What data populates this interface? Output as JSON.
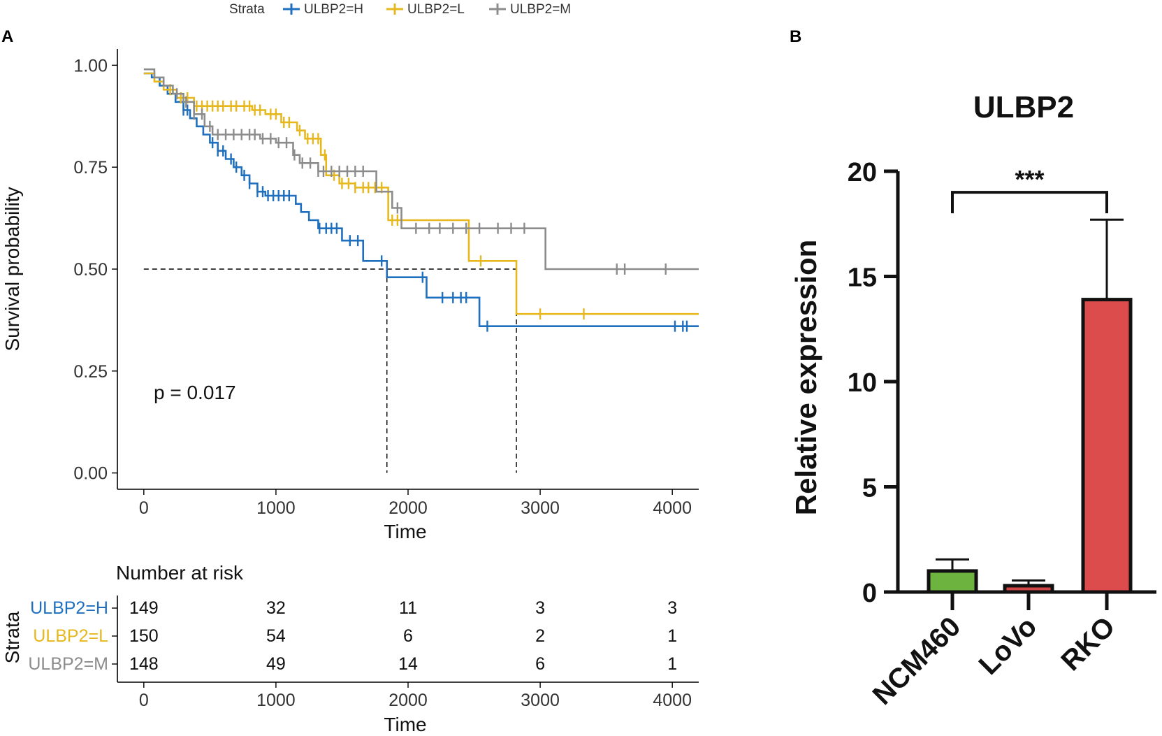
{
  "chart_data": [
    {
      "panel_label": "A",
      "type": "line",
      "subtype": "kaplan-meier",
      "title": "",
      "xlabel": "Time",
      "ylabel": "Survival probability",
      "xlim": [
        -200,
        4200
      ],
      "ylim": [
        -0.04,
        1.04
      ],
      "x_ticks": [
        0,
        1000,
        2000,
        3000,
        4000
      ],
      "x_tick_labels": [
        "0",
        "1000",
        "2000",
        "3000",
        "4000"
      ],
      "y_ticks": [
        0,
        0.25,
        0.5,
        0.75,
        1.0
      ],
      "y_tick_labels": [
        "0.00",
        "0.25",
        "0.50",
        "0.75",
        "1.00"
      ],
      "pvalue_text": "p = 0.017",
      "median_reference_line": {
        "y": 0.5,
        "x_medians": [
          1840,
          2820
        ]
      },
      "legend": {
        "title": "Strata",
        "position": "top",
        "entries": [
          "ULBP2=H",
          "ULBP2=L",
          "ULBP2=M"
        ]
      },
      "series": [
        {
          "name": "ULBP2=H",
          "color": "#1f6fbf",
          "steps": [
            [
              0,
              0.98
            ],
            [
              60,
              0.97
            ],
            [
              120,
              0.95
            ],
            [
              180,
              0.93
            ],
            [
              240,
              0.91
            ],
            [
              300,
              0.89
            ],
            [
              350,
              0.87
            ],
            [
              400,
              0.85
            ],
            [
              450,
              0.83
            ],
            [
              500,
              0.81
            ],
            [
              560,
              0.79
            ],
            [
              620,
              0.77
            ],
            [
              680,
              0.75
            ],
            [
              740,
              0.73
            ],
            [
              800,
              0.71
            ],
            [
              860,
              0.69
            ],
            [
              920,
              0.68
            ],
            [
              1150,
              0.66
            ],
            [
              1190,
              0.64
            ],
            [
              1250,
              0.62
            ],
            [
              1320,
              0.6
            ],
            [
              1500,
              0.57
            ],
            [
              1660,
              0.52
            ],
            [
              1840,
              0.48
            ],
            [
              2140,
              0.43
            ],
            [
              2540,
              0.36
            ],
            [
              4200,
              0.36
            ]
          ],
          "censor_times": [
            300,
            330,
            520,
            560,
            600,
            660,
            700,
            760,
            800,
            860,
            900,
            940,
            980,
            1020,
            1060,
            1100,
            1330,
            1380,
            1420,
            1460,
            1560,
            1620,
            1800,
            2110,
            2260,
            2340,
            2400,
            2440,
            2600,
            4020,
            4080,
            4110
          ],
          "risk_counts": [
            149,
            32,
            11,
            3,
            3
          ]
        },
        {
          "name": "ULBP2=L",
          "color": "#e6b81e",
          "steps": [
            [
              0,
              0.98
            ],
            [
              80,
              0.96
            ],
            [
              150,
              0.94
            ],
            [
              250,
              0.92
            ],
            [
              380,
              0.9
            ],
            [
              820,
              0.89
            ],
            [
              920,
              0.88
            ],
            [
              1040,
              0.86
            ],
            [
              1160,
              0.84
            ],
            [
              1220,
              0.82
            ],
            [
              1340,
              0.78
            ],
            [
              1380,
              0.73
            ],
            [
              1480,
              0.71
            ],
            [
              1600,
              0.7
            ],
            [
              1850,
              0.62
            ],
            [
              2460,
              0.52
            ],
            [
              2820,
              0.39
            ],
            [
              4200,
              0.39
            ]
          ],
          "censor_times": [
            200,
            280,
            330,
            400,
            440,
            480,
            520,
            560,
            600,
            660,
            700,
            760,
            800,
            840,
            880,
            960,
            1000,
            1060,
            1100,
            1180,
            1240,
            1280,
            1320,
            1370,
            1440,
            1500,
            1550,
            1600,
            1660,
            1700,
            1750,
            1800,
            1880,
            1920,
            2550,
            3000,
            3330
          ],
          "risk_counts": [
            150,
            54,
            6,
            2,
            1
          ]
        },
        {
          "name": "ULBP2=M",
          "color": "#8c8c8c",
          "steps": [
            [
              0,
              0.99
            ],
            [
              80,
              0.97
            ],
            [
              150,
              0.95
            ],
            [
              220,
              0.93
            ],
            [
              300,
              0.91
            ],
            [
              380,
              0.88
            ],
            [
              460,
              0.85
            ],
            [
              520,
              0.83
            ],
            [
              880,
              0.82
            ],
            [
              1000,
              0.81
            ],
            [
              1130,
              0.78
            ],
            [
              1180,
              0.76
            ],
            [
              1320,
              0.74
            ],
            [
              1760,
              0.69
            ],
            [
              1880,
              0.65
            ],
            [
              1950,
              0.6
            ],
            [
              3040,
              0.5
            ],
            [
              4200,
              0.5
            ]
          ],
          "censor_times": [
            250,
            320,
            380,
            440,
            500,
            560,
            620,
            680,
            740,
            800,
            840,
            900,
            960,
            1020,
            1080,
            1140,
            1200,
            1260,
            1320,
            1360,
            1420,
            1480,
            1540,
            1600,
            1660,
            1920,
            2060,
            2160,
            2240,
            2340,
            2440,
            2540,
            2680,
            2780,
            2880,
            3580,
            3640,
            3950
          ],
          "risk_counts": [
            148,
            49,
            14,
            6,
            1
          ]
        }
      ],
      "risk_table": {
        "title": "Number at risk",
        "ylabel": "Strata",
        "xlabel": "Time",
        "times": [
          0,
          1000,
          2000,
          3000,
          4000
        ]
      }
    },
    {
      "panel_label": "B",
      "type": "bar",
      "title": "ULBP2",
      "xlabel": "",
      "ylabel": "Relative expression",
      "ylim": [
        0,
        20
      ],
      "y_ticks": [
        0,
        5,
        10,
        15,
        20
      ],
      "y_tick_labels": [
        "0",
        "5",
        "10",
        "15",
        "20"
      ],
      "categories": [
        "NCM460",
        "LoVo",
        "RKO"
      ],
      "values": [
        1.0,
        0.3,
        13.9
      ],
      "error_upper": [
        1.55,
        0.55,
        17.7
      ],
      "colors": [
        "#6db33f",
        "#d04545",
        "#dd4c4c"
      ],
      "significance": {
        "label": "***",
        "between": [
          "NCM460",
          "RKO"
        ],
        "y": 19.0
      }
    }
  ]
}
